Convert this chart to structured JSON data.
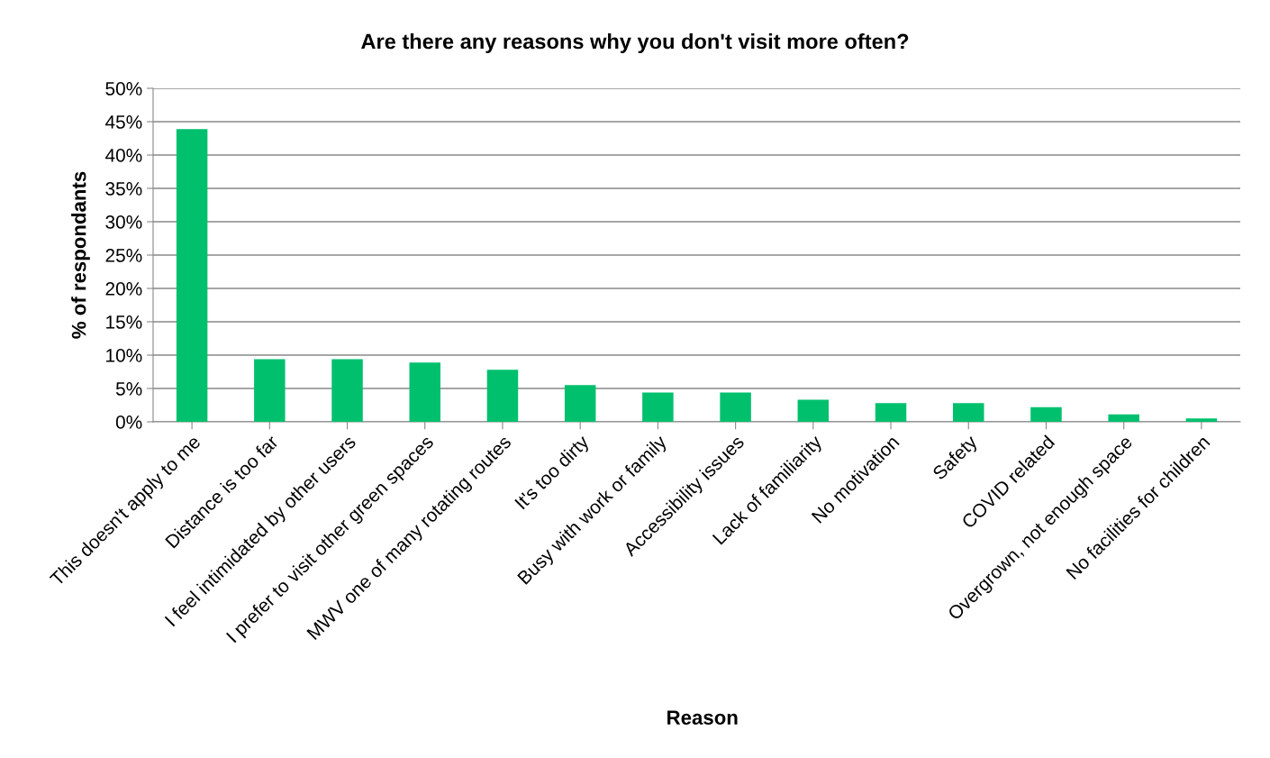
{
  "chart_data": {
    "type": "bar",
    "title": "Are there any reasons why you don't visit more often?",
    "xlabel": "Reason",
    "ylabel": "% of respondants",
    "categories": [
      "This doesn't apply to me",
      "Distance is too far",
      "I feel intimidated by other users",
      "I prefer to visit other green spaces",
      "MWV one of many rotating routes",
      "It's too dirty",
      "Busy with work or family",
      "Accessibility issues",
      "Lack of familiarity",
      "No motivation",
      "Safety",
      "COVID related",
      "Overgrown, not enough space",
      "No facilities for children"
    ],
    "values": [
      43.9,
      9.4,
      9.4,
      8.9,
      7.8,
      5.5,
      4.4,
      4.4,
      3.3,
      2.8,
      2.8,
      2.2,
      1.1,
      0.5
    ],
    "color": "#00c06e",
    "ylim": [
      0,
      50
    ],
    "yticks": [
      {
        "value": 0,
        "label": "0%"
      },
      {
        "value": 5,
        "label": "5%"
      },
      {
        "value": 10,
        "label": "10%"
      },
      {
        "value": 15,
        "label": "15%"
      },
      {
        "value": 20,
        "label": "20%"
      },
      {
        "value": 25,
        "label": "25%"
      },
      {
        "value": 30,
        "label": "30%"
      },
      {
        "value": 35,
        "label": "35%"
      },
      {
        "value": 40,
        "label": "40%"
      },
      {
        "value": 45,
        "label": "45%"
      },
      {
        "value": 50,
        "label": "50%"
      }
    ],
    "grid": "y",
    "legend": false
  }
}
